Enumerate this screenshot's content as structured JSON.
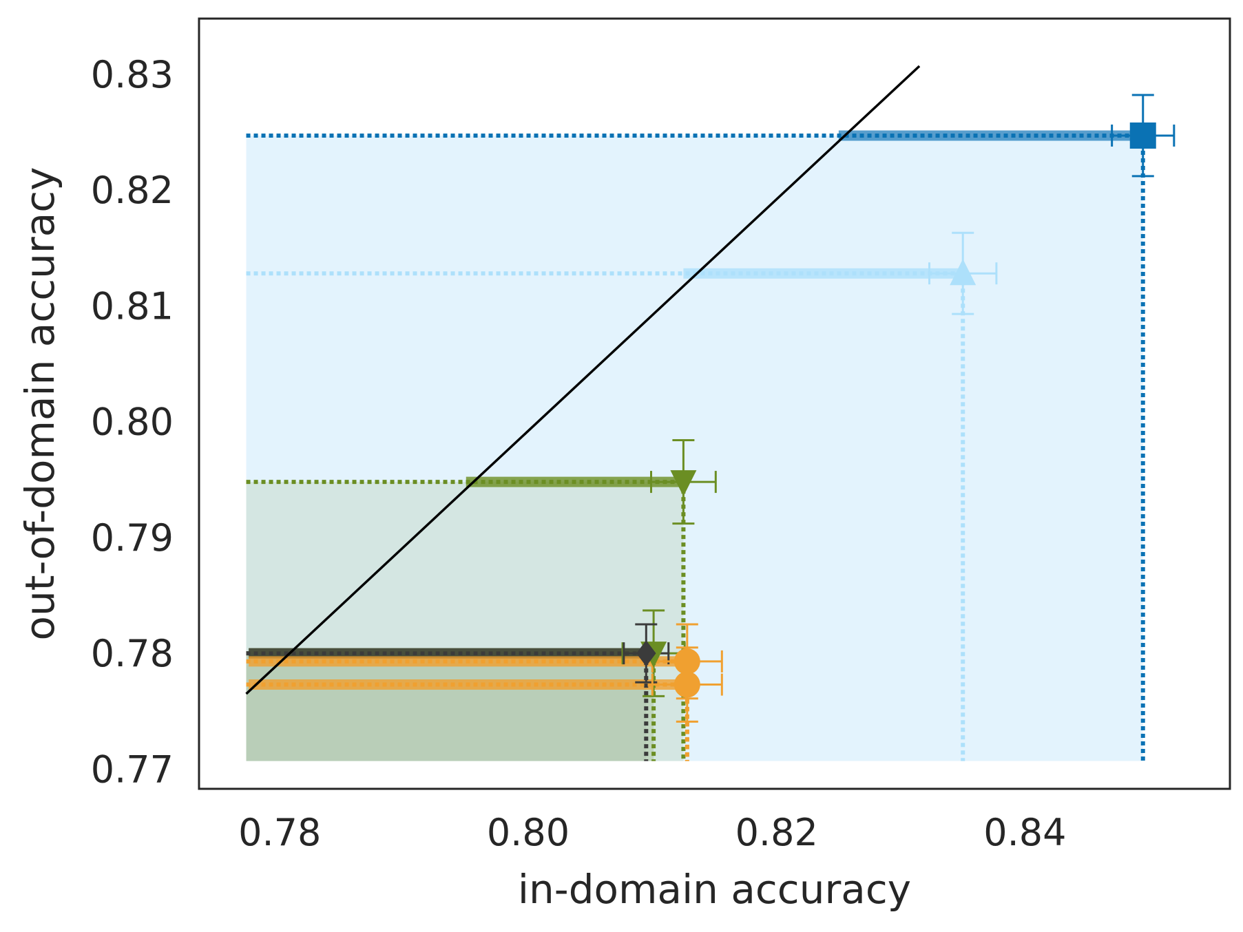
{
  "chart_data": {
    "type": "scatter",
    "title": "",
    "xlabel": "in-domain accuracy",
    "ylabel": "out-of-domain accuracy",
    "xlim": [
      0.7735,
      0.8565
    ],
    "ylim": [
      0.7683,
      0.8348
    ],
    "xticks": [
      0.78,
      0.8,
      0.82,
      0.84
    ],
    "yticks": [
      0.77,
      0.78,
      0.79,
      0.8,
      0.81,
      0.82,
      0.83
    ],
    "xtick_labels": [
      "0.78",
      "0.80",
      "0.82",
      "0.84"
    ],
    "ytick_labels": [
      "0.77",
      "0.78",
      "0.79",
      "0.80",
      "0.81",
      "0.82",
      "0.83"
    ],
    "grid": false,
    "legend": false,
    "region_origin": {
      "x": 0.7773,
      "y": 0.7707
    },
    "reference_line": {
      "x": [
        0.7773,
        0.8315
      ],
      "y": [
        0.7765,
        0.8307
      ],
      "color": "#000000"
    },
    "series": [
      {
        "color": "#7ec8f8",
        "fill_opacity": 0.22,
        "marker": "square",
        "marker_color": "#0a72b4",
        "line_color": "#0a72b4",
        "band_color": "#2e86c1",
        "band_from_x": 0.825,
        "x": 0.8495,
        "y": 0.8247,
        "xerr": 0.0025,
        "yerr": 0.0035
      },
      {
        "color": "#b4e3fb",
        "fill_opacity": 0.0,
        "marker": "triangle-up",
        "marker_color": "#ade0fb",
        "line_color": "#ade0fb",
        "band_color": "#ade0fb",
        "band_from_x": 0.8125,
        "x": 0.835,
        "y": 0.8128,
        "xerr": 0.0027,
        "yerr": 0.0035
      },
      {
        "color": "#6b8e23",
        "fill_opacity": 0.12,
        "marker": "triangle-down",
        "marker_color": "#6b8e23",
        "line_color": "#6b8e23",
        "band_color": "#6b8e23",
        "band_from_x": 0.795,
        "x": 0.8125,
        "y": 0.7948,
        "xerr": 0.0026,
        "yerr": 0.0036
      },
      {
        "color": "#6b8e23",
        "fill_opacity": 0.18,
        "marker": "triangle-down",
        "marker_color": "#6b8e23",
        "line_color": "#6b8e23",
        "band_color": "#6b8e23",
        "band_from_x": 0.7775,
        "x": 0.8101,
        "y": 0.78,
        "xerr": 0.0025,
        "yerr": 0.0037
      },
      {
        "color": "#3b3b3b",
        "fill_opacity": 0.05,
        "marker": "diamond",
        "marker_color": "#3b3b3b",
        "line_color": "#3b3b3b",
        "band_color": "#3b3b3b",
        "band_from_x": 0.7775,
        "x": 0.8095,
        "y": 0.78,
        "xerr": 0.0018,
        "yerr": 0.0025
      },
      {
        "color": "#f0a030",
        "fill_opacity": 0.0,
        "marker": "circle",
        "marker_color": "#f0a030",
        "line_color": "#f0a030",
        "band_color": "#f0a030",
        "band_from_x": 0.7775,
        "x": 0.8128,
        "y": 0.7793,
        "xerr": 0.0028,
        "yerr": 0.0032
      },
      {
        "color": "#f0a030",
        "fill_opacity": 0.0,
        "marker": "circle",
        "marker_color": "#f0a030",
        "line_color": "#f0a030",
        "band_color": "#f0a030",
        "band_from_x": 0.7775,
        "x": 0.8128,
        "y": 0.7773,
        "xerr": 0.0028,
        "yerr": 0.0032
      }
    ]
  }
}
